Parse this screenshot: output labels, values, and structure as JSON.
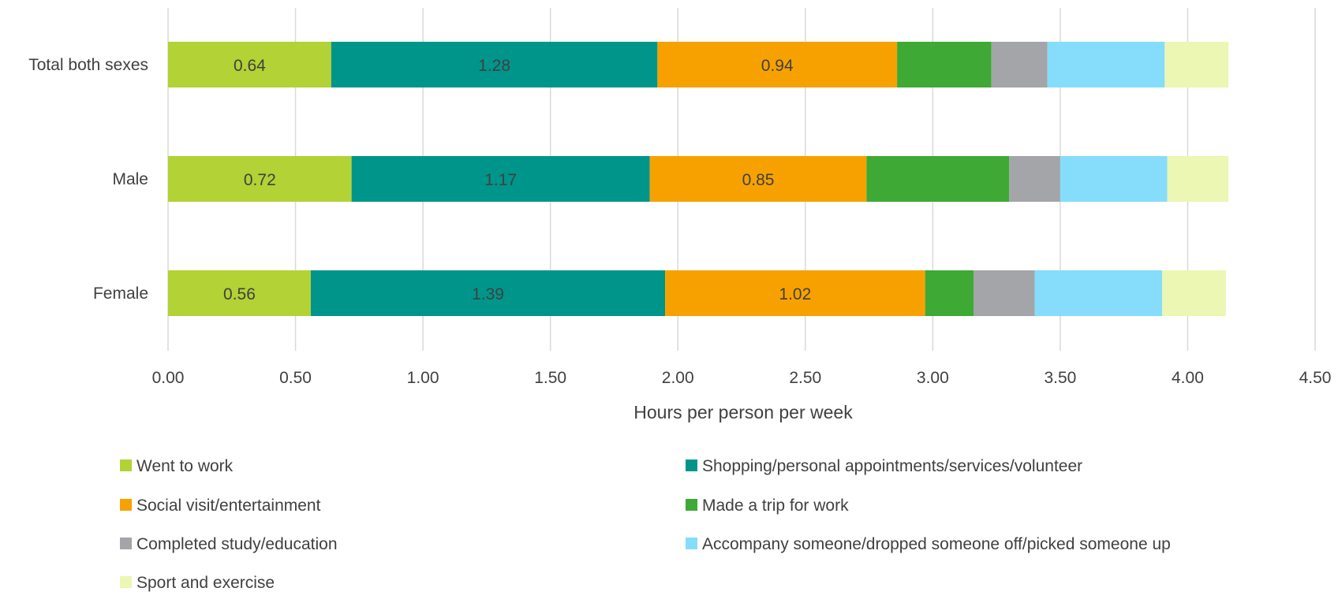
{
  "chart_data": {
    "type": "bar",
    "orientation": "horizontal",
    "stacked": true,
    "categories": [
      "Total both sexes",
      "Male",
      "Female"
    ],
    "series": [
      {
        "name": "Went to work",
        "color": "#b2d235",
        "values": [
          0.64,
          0.72,
          0.56
        ],
        "labels": [
          "0.64",
          "0.72",
          "0.56"
        ]
      },
      {
        "name": "Shopping/personal appointments/services/volunteer",
        "color": "#00958a",
        "values": [
          1.28,
          1.17,
          1.39
        ],
        "labels": [
          "1.28",
          "1.17",
          "1.39"
        ]
      },
      {
        "name": "Social visit/entertainment",
        "color": "#f7a100",
        "values": [
          0.94,
          0.85,
          1.02
        ],
        "labels": [
          "0.94",
          "0.85",
          "1.02"
        ]
      },
      {
        "name": "Made a trip for work",
        "color": "#3ea935",
        "values": [
          0.37,
          0.56,
          0.19
        ],
        "labels": [
          "",
          "",
          ""
        ]
      },
      {
        "name": "Completed study/education",
        "color": "#a3a5a8",
        "values": [
          0.22,
          0.2,
          0.24
        ],
        "labels": [
          "",
          "",
          ""
        ]
      },
      {
        "name": "Accompany someone/dropped someone off/picked someone up",
        "color": "#86dcfb",
        "values": [
          0.46,
          0.42,
          0.5
        ],
        "labels": [
          "",
          "",
          ""
        ]
      },
      {
        "name": "Sport and exercise",
        "color": "#ebf7b3",
        "values": [
          0.25,
          0.24,
          0.25
        ],
        "labels": [
          "",
          "",
          ""
        ]
      }
    ],
    "xlabel": "Hours per person per week",
    "ylabel": "",
    "xlim": [
      0,
      4.5
    ],
    "xticks": [
      "0.00",
      "0.50",
      "1.00",
      "1.50",
      "2.00",
      "2.50",
      "3.00",
      "3.50",
      "4.00",
      "4.50"
    ],
    "grid": "vertical",
    "legend_position": "bottom"
  }
}
